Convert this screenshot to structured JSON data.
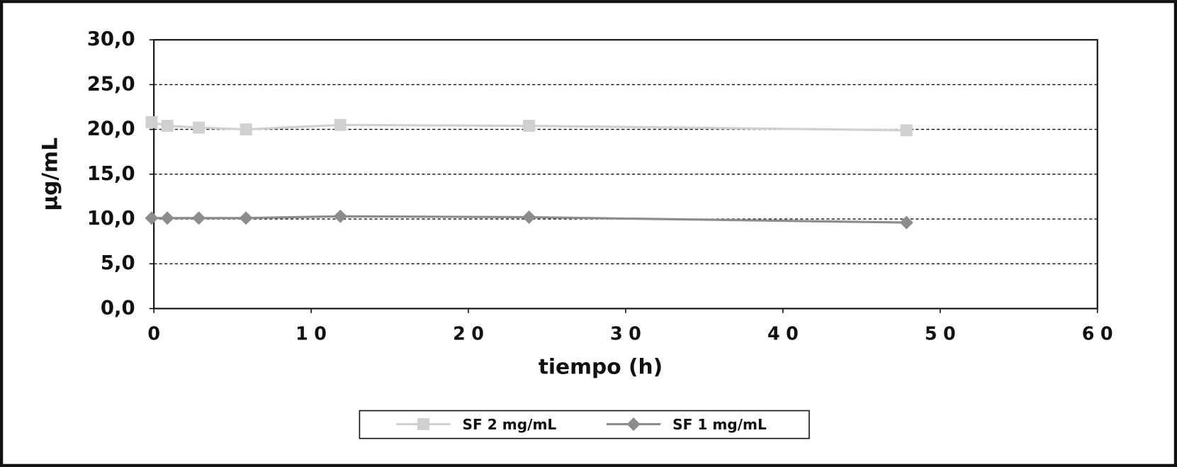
{
  "chart_data": {
    "type": "line",
    "x_label": "tiempo (h)",
    "y_label": "µg/mL",
    "x": [
      0,
      1,
      3,
      6,
      12,
      24,
      48
    ],
    "series": [
      {
        "name": "SF 2 mg/mL",
        "color": "#d0d0d0",
        "marker": "square",
        "values": [
          20.8,
          20.4,
          20.2,
          20.0,
          20.5,
          20.4,
          19.9
        ]
      },
      {
        "name": "SF 1 mg/mL",
        "color": "#8c8c8c",
        "marker": "diamond",
        "values": [
          10.1,
          10.1,
          10.1,
          10.1,
          10.3,
          10.2,
          9.6
        ]
      }
    ],
    "xlim": [
      0,
      60
    ],
    "xticks": [
      0,
      10,
      20,
      30,
      40,
      50,
      60
    ],
    "ylim": [
      0,
      30
    ],
    "yticks": [
      {
        "value": 0,
        "label": "0,0"
      },
      {
        "value": 5,
        "label": "5,0"
      },
      {
        "value": 10,
        "label": "10,0"
      },
      {
        "value": 15,
        "label": "15,0"
      },
      {
        "value": 20,
        "label": "20,0"
      },
      {
        "value": 25,
        "label": "25,0"
      },
      {
        "value": 30,
        "label": "30,0"
      }
    ],
    "grid": true,
    "legend": "bottom"
  }
}
